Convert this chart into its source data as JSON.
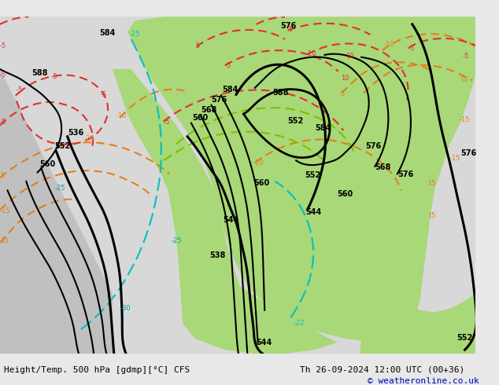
{
  "title_left": "Height/Temp. 500 hPa [gdmp][°C] CFS",
  "title_right": "Th 26-09-2024 12:00 UTC (00+36)",
  "copyright": "© weatheronline.co.uk",
  "bg_color": "#e8e8e8",
  "land_color": "#c8c8c8",
  "green_color": "#90d070",
  "map_bg": "#d0d0d0",
  "font_size_labels": 7,
  "font_size_bottom": 8
}
